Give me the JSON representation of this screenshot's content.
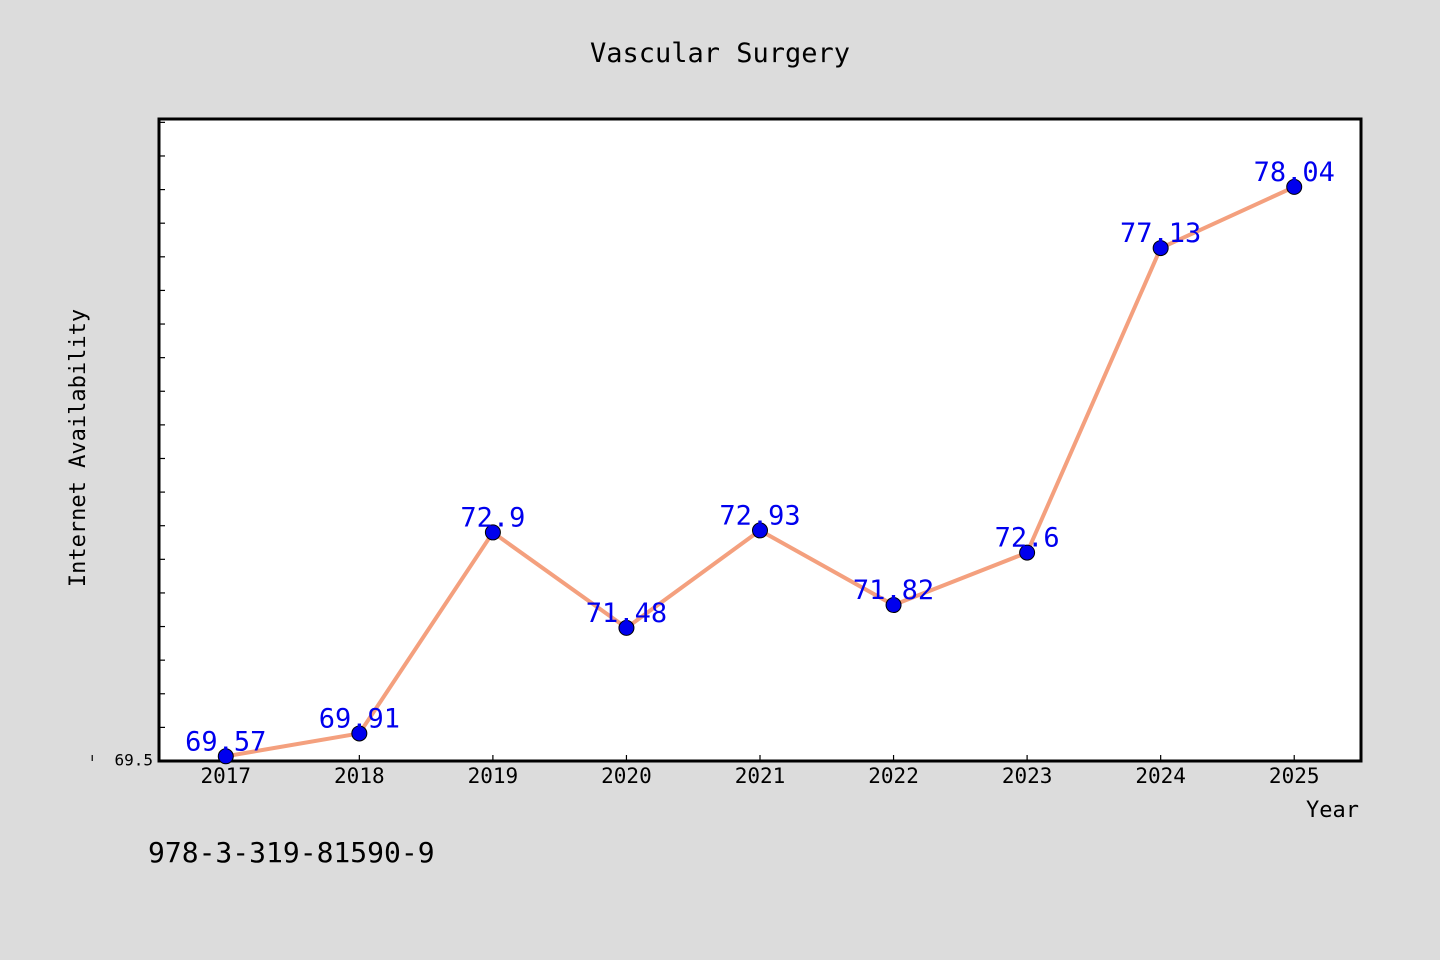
{
  "figure": {
    "background": "#dcdcdc",
    "plot_background": "#ffffff",
    "note": "978-3-319-81590-9"
  },
  "chart_data": {
    "type": "line",
    "title": "Vascular Surgery",
    "xlabel": "Year",
    "ylabel": "Internet Availability",
    "categories": [
      "2017",
      "2018",
      "2019",
      "2020",
      "2021",
      "2022",
      "2023",
      "2024",
      "2025"
    ],
    "series": [
      {
        "values": [
          69.57,
          69.91,
          72.9,
          71.48,
          72.93,
          71.82,
          72.6,
          77.13,
          78.04
        ],
        "value_labels": [
          "69.57",
          "69.91",
          "72.9",
          "71.48",
          "72.93",
          "71.82",
          "72.6",
          "77.13",
          "78.04"
        ],
        "line_color": "#f4a07e",
        "marker_color": "#0000ee",
        "label_color": "#0000ee"
      }
    ],
    "yticks": [
      {
        "value": 69.5,
        "label": "69.5"
      }
    ],
    "ylim": [
      69.5,
      79.05
    ],
    "xlim": [
      0.5,
      9.5
    ],
    "grid": false,
    "legend": "none"
  }
}
